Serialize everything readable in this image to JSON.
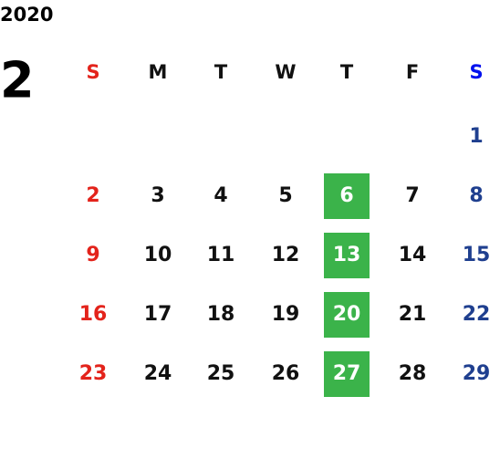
{
  "year": "2020",
  "month": "2",
  "weekdays": [
    "S",
    "M",
    "T",
    "W",
    "T",
    "F",
    "S"
  ],
  "weeks": [
    [
      null,
      null,
      null,
      null,
      null,
      null,
      1
    ],
    [
      2,
      3,
      4,
      5,
      6,
      7,
      8
    ],
    [
      9,
      10,
      11,
      12,
      13,
      14,
      15
    ],
    [
      16,
      17,
      18,
      19,
      20,
      21,
      22
    ],
    [
      23,
      24,
      25,
      26,
      27,
      28,
      29
    ]
  ]
}
